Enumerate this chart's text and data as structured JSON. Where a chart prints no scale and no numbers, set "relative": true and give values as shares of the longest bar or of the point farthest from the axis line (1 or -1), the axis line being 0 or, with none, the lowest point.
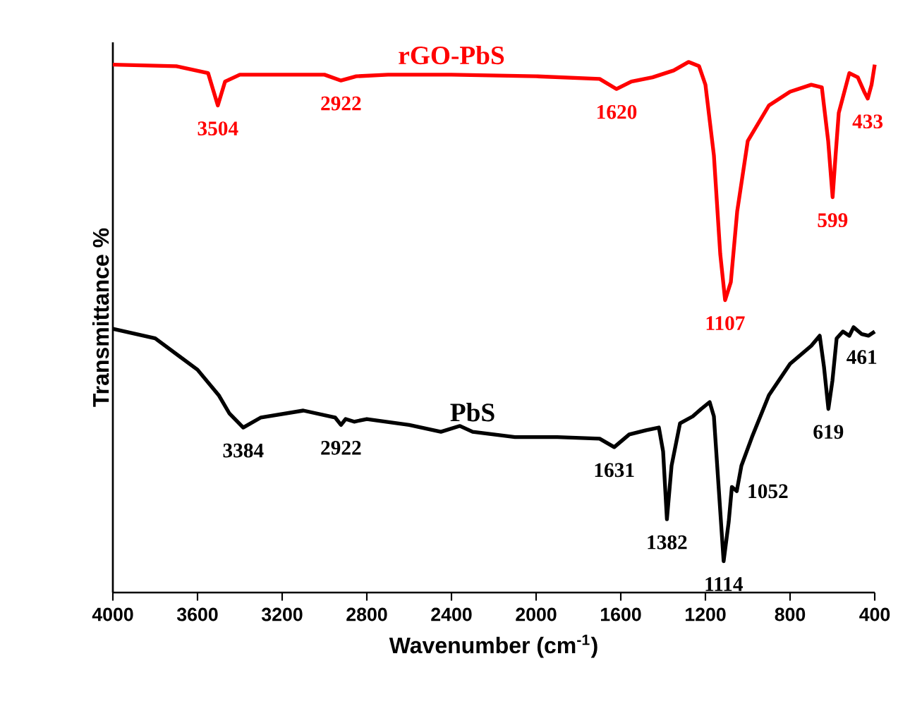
{
  "chart_data": {
    "type": "line",
    "relative": true,
    "xlabel": "Wavenumber (cm$^{-1}$)",
    "ylabel": "Transmittance %",
    "xlim": [
      4000,
      400
    ],
    "xticks": [
      4000,
      3600,
      3200,
      2800,
      2400,
      2000,
      1600,
      1200,
      800,
      400
    ],
    "grid": false,
    "marker": "none",
    "line_style": "solid",
    "series": [
      {
        "name": "rGO-PbS",
        "color": "#ff0000",
        "x": [
          4000,
          3700,
          3550,
          3504,
          3470,
          3400,
          3200,
          3000,
          2922,
          2850,
          2700,
          2400,
          2000,
          1700,
          1620,
          1550,
          1450,
          1350,
          1280,
          1230,
          1200,
          1160,
          1130,
          1107,
          1080,
          1050,
          1000,
          900,
          800,
          700,
          650,
          620,
          599,
          585,
          570,
          520,
          480,
          450,
          433,
          415,
          400
        ],
        "values": [
          0.995,
          0.992,
          0.979,
          0.918,
          0.963,
          0.976,
          0.976,
          0.976,
          0.965,
          0.973,
          0.976,
          0.976,
          0.973,
          0.968,
          0.949,
          0.963,
          0.971,
          0.984,
          1,
          0.992,
          0.957,
          0.824,
          0.638,
          0.551,
          0.585,
          0.718,
          0.851,
          0.918,
          0.944,
          0.957,
          0.952,
          0.851,
          0.745,
          0.824,
          0.904,
          0.979,
          0.971,
          0.944,
          0.931,
          0.957,
          0.995
        ]
      },
      {
        "name": "PbS",
        "color": "#000000",
        "x": [
          4000,
          3800,
          3600,
          3500,
          3450,
          3384,
          3300,
          3100,
          2950,
          2922,
          2900,
          2860,
          2800,
          2600,
          2450,
          2360,
          2300,
          2100,
          1900,
          1700,
          1631,
          1560,
          1480,
          1420,
          1400,
          1382,
          1360,
          1320,
          1260,
          1220,
          1180,
          1160,
          1140,
          1114,
          1090,
          1075,
          1052,
          1030,
          980,
          900,
          800,
          700,
          660,
          640,
          619,
          600,
          580,
          550,
          520,
          500,
          461,
          430,
          400
        ],
        "values": [
          0.497,
          0.479,
          0.42,
          0.372,
          0.338,
          0.311,
          0.33,
          0.343,
          0.33,
          0.316,
          0.327,
          0.322,
          0.327,
          0.316,
          0.303,
          0.314,
          0.303,
          0.293,
          0.293,
          0.29,
          0.274,
          0.298,
          0.306,
          0.311,
          0.266,
          0.138,
          0.239,
          0.319,
          0.332,
          0.346,
          0.359,
          0.332,
          0.213,
          0.059,
          0.133,
          0.199,
          0.191,
          0.239,
          0.293,
          0.372,
          0.431,
          0.465,
          0.484,
          0.426,
          0.346,
          0.399,
          0.479,
          0.492,
          0.484,
          0.5,
          0.487,
          0.484,
          0.492
        ]
      }
    ],
    "annotations": [
      {
        "text": "3504",
        "x": 3504,
        "y": 0.918
      },
      {
        "text": "2922",
        "x": 2922,
        "y": 0.965
      },
      {
        "text": "1620",
        "x": 1620,
        "y": 0.949
      },
      {
        "text": "1107",
        "x": 1107,
        "y": 0.551
      },
      {
        "text": "599",
        "x": 599,
        "y": 0.745
      },
      {
        "text": "433",
        "x": 433,
        "y": 0.931
      },
      {
        "text": "3384",
        "x": 3384,
        "y": 0.311
      },
      {
        "text": "2922",
        "x": 2922,
        "y": 0.316
      },
      {
        "text": "1631",
        "x": 1631,
        "y": 0.274
      },
      {
        "text": "1382",
        "x": 1382,
        "y": 0.138
      },
      {
        "text": "1114",
        "x": 1114,
        "y": 0.059
      },
      {
        "text": "1052",
        "x": 1052,
        "y": 0.191
      },
      {
        "text": "619",
        "x": 619,
        "y": 0.346
      },
      {
        "text": "461",
        "x": 461,
        "y": 0.487
      }
    ]
  }
}
